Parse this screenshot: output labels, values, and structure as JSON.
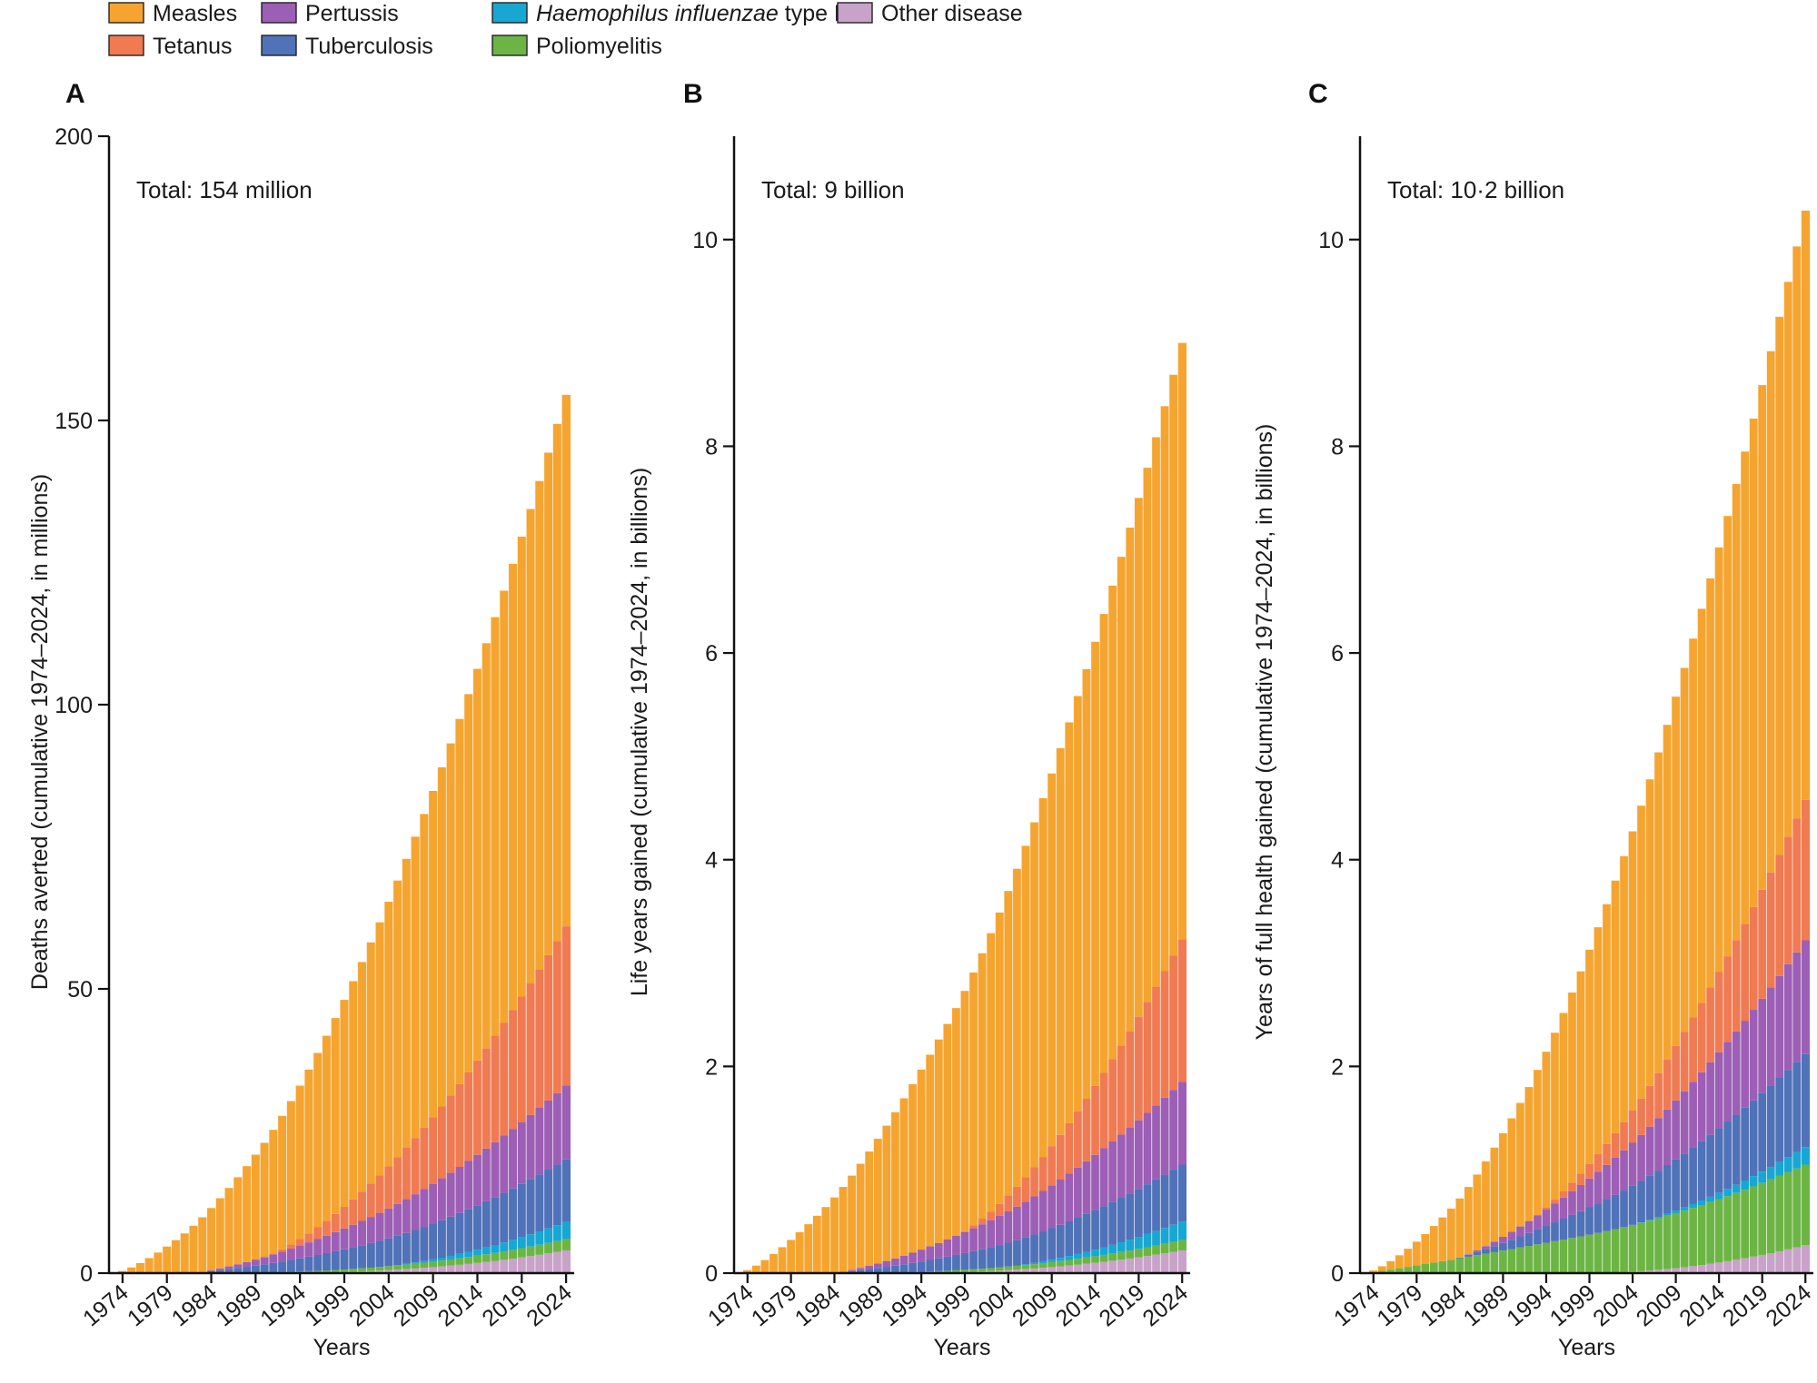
{
  "colors": {
    "measles": "#f5a42f",
    "tetanus": "#f07a52",
    "pertussis": "#9c5fb5",
    "tuberculosis": "#4f72b8",
    "hib": "#17a7d2",
    "polio": "#6cb544",
    "other": "#c9a2c9"
  },
  "legend": [
    {
      "key": "measles",
      "label": "Measles"
    },
    {
      "key": "tetanus",
      "label": "Tetanus"
    },
    {
      "key": "pertussis",
      "label": "Pertussis"
    },
    {
      "key": "tuberculosis",
      "label": "Tuberculosis"
    },
    {
      "key": "hib",
      "label_italic": "Haemophilus influenzae",
      "label_rest": " type B"
    },
    {
      "key": "polio",
      "label": "Poliomyelitis"
    },
    {
      "key": "other",
      "label": "Other disease"
    }
  ],
  "chart_data": [
    {
      "type": "bar",
      "stacked": true,
      "panel": "A",
      "annotation": "Total: 154 million",
      "xlabel": "Years",
      "ylabel": "Deaths averted (cumulative 1974–2024, in millions)",
      "ylim": [
        0,
        200
      ],
      "yticks": [
        0,
        50,
        100,
        150,
        200
      ],
      "xticks": [
        1974,
        1979,
        1984,
        1989,
        1994,
        1999,
        2004,
        2009,
        2014,
        2019,
        2024
      ],
      "x_range": [
        1974,
        2024
      ],
      "final": {
        "other": 4,
        "polio": 2,
        "hib": 3,
        "tuberculosis": 11,
        "pertussis": 13,
        "tetanus": 28,
        "measles": 93.5
      },
      "onset": {
        "other": 1990,
        "polio": 1984,
        "hib": 2004,
        "tuberculosis": 1982,
        "pertussis": 1983,
        "tetanus": 1991,
        "measles": 1974
      },
      "shape": {
        "other": 2.4,
        "polio": 1.6,
        "hib": 1.6,
        "tuberculosis": 1.3,
        "pertussis": 1.4,
        "tetanus": 1.5,
        "measles": 1.4
      }
    },
    {
      "type": "bar",
      "stacked": true,
      "panel": "B",
      "annotation": "Total: 9 billion",
      "xlabel": "Years",
      "ylabel": "Life years gained (cumulative 1974–2024, in billions)",
      "ylim": [
        0,
        11
      ],
      "yticks": [
        0,
        2,
        4,
        6,
        8,
        10
      ],
      "xticks": [
        1974,
        1979,
        1984,
        1989,
        1994,
        1999,
        2004,
        2009,
        2014,
        2019,
        2024
      ],
      "x_range": [
        1974,
        2024
      ],
      "final": {
        "other": 0.22,
        "polio": 0.1,
        "hib": 0.18,
        "tuberculosis": 0.55,
        "pertussis": 0.8,
        "tetanus": 1.38,
        "measles": 5.77
      },
      "onset": {
        "other": 1992,
        "polio": 1984,
        "hib": 2004,
        "tuberculosis": 1984,
        "pertussis": 1985,
        "tetanus": 1999,
        "measles": 1974
      },
      "shape": {
        "other": 2.2,
        "polio": 1.6,
        "hib": 1.6,
        "tuberculosis": 1.3,
        "pertussis": 1.4,
        "tetanus": 1.5,
        "measles": 1.35
      }
    },
    {
      "type": "bar",
      "stacked": true,
      "panel": "C",
      "annotation": "Total: 10·2 billion",
      "xlabel": "Years",
      "ylabel": "Years of full health gained (cumulative 1974–2024, in billions)",
      "ylim": [
        0,
        11
      ],
      "yticks": [
        0,
        2,
        4,
        6,
        8,
        10
      ],
      "xticks": [
        1974,
        1979,
        1984,
        1989,
        1994,
        1999,
        2004,
        2009,
        2014,
        2019,
        2024
      ],
      "x_range": [
        1974,
        2024
      ],
      "final": {
        "other": 0.27,
        "polio": 0.78,
        "hib": 0.17,
        "tuberculosis": 0.9,
        "pertussis": 1.1,
        "tetanus": 1.36,
        "measles": 5.7
      },
      "onset": {
        "other": 1999,
        "polio": 1974,
        "hib": 2004,
        "tuberculosis": 1984,
        "pertussis": 1985,
        "tetanus": 1993,
        "measles": 1974
      },
      "shape": {
        "other": 2.0,
        "polio": 1.1,
        "hib": 1.6,
        "tuberculosis": 1.3,
        "pertussis": 1.4,
        "tetanus": 1.5,
        "measles": 1.5
      }
    }
  ]
}
